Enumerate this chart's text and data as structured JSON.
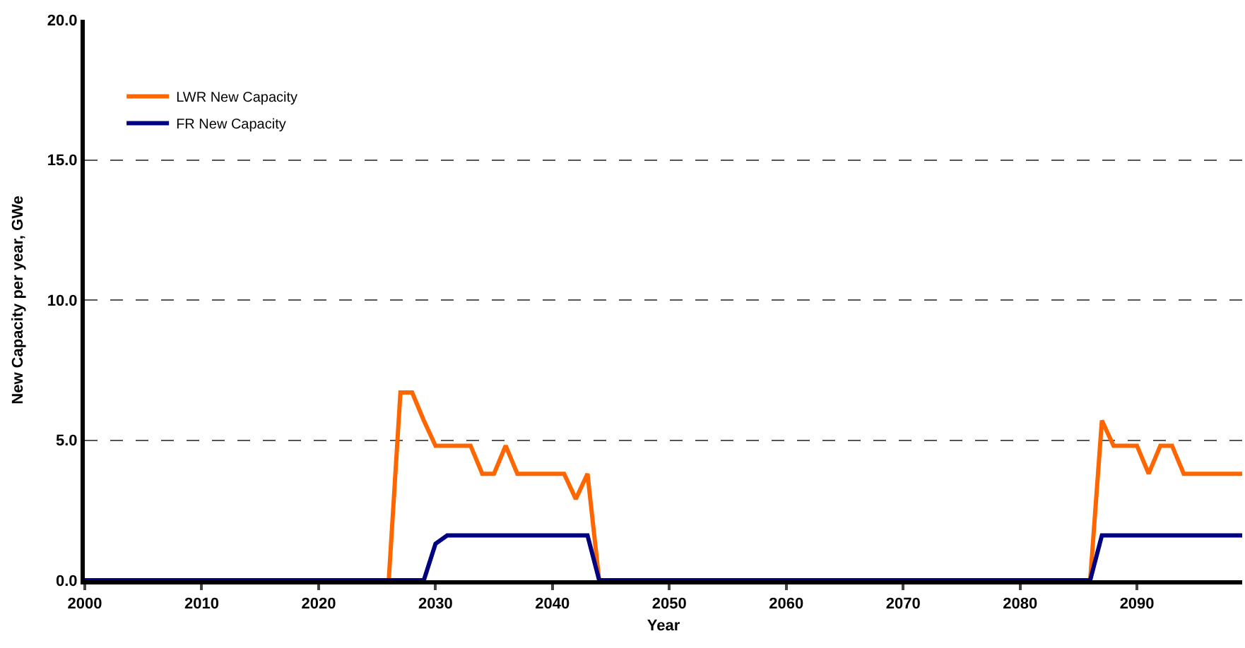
{
  "chart_data": {
    "type": "line",
    "xlabel": "Year",
    "ylabel": "New Capacity per year, GWe",
    "xlim": [
      2000,
      2099
    ],
    "xticks": [
      2000,
      2010,
      2020,
      2030,
      2040,
      2050,
      2060,
      2070,
      2080,
      2090
    ],
    "ylim": [
      0,
      20
    ],
    "yticks": [
      {
        "value": 0,
        "label": "0.0"
      },
      {
        "value": 5,
        "label": "5.0"
      },
      {
        "value": 10,
        "label": "10.0"
      },
      {
        "value": 15,
        "label": "15.0"
      },
      {
        "value": 20,
        "label": "20.0"
      }
    ],
    "grid": "y",
    "legend": "top left",
    "marker": "none",
    "line_style": "solid",
    "series": [
      {
        "name": "LWR New Capacity",
        "color": "#ff6600",
        "x": [
          2000,
          2026,
          2027,
          2028,
          2029,
          2030,
          2033,
          2034,
          2035,
          2036,
          2037,
          2041,
          2042,
          2043,
          2044,
          2086,
          2087,
          2088,
          2090,
          2091,
          2092,
          2093,
          2094,
          2099
        ],
        "values": [
          0,
          0,
          6.7,
          6.7,
          5.7,
          4.8,
          4.8,
          3.8,
          3.8,
          4.8,
          3.8,
          3.8,
          2.9,
          3.8,
          0,
          0,
          5.7,
          4.8,
          4.8,
          3.8,
          4.8,
          4.8,
          3.8,
          3.8
        ]
      },
      {
        "name": "FR New Capacity",
        "color": "#000080",
        "x": [
          2000,
          2029,
          2030,
          2031,
          2043,
          2044,
          2086,
          2087,
          2099
        ],
        "values": [
          0,
          0,
          1.3,
          1.6,
          1.6,
          0,
          0,
          1.6,
          1.6
        ]
      }
    ]
  }
}
